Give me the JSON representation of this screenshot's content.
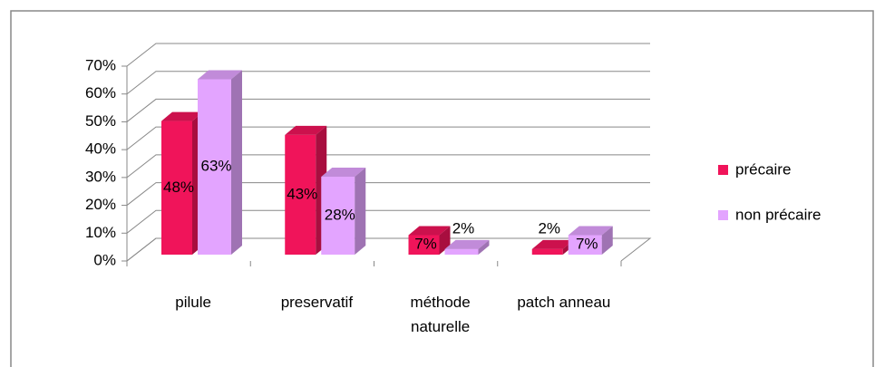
{
  "chart_data": {
    "type": "bar3d",
    "categories": [
      "pilule",
      "preservatif",
      "méthode naturelle",
      "patch anneau"
    ],
    "series": [
      {
        "name": "précaire",
        "color": "#f0145a",
        "values": [
          48,
          43,
          7,
          2
        ],
        "value_labels": [
          "48%",
          "43%",
          "7%",
          "2%"
        ]
      },
      {
        "name": "non précaire",
        "color": "#e3a4ff",
        "values": [
          63,
          28,
          2,
          7
        ],
        "value_labels": [
          "63%",
          "28%",
          "2%",
          "7%"
        ]
      }
    ],
    "ylim": [
      0,
      70
    ],
    "yticks": [
      {
        "value": 0,
        "label": "0%"
      },
      {
        "value": 10,
        "label": "10%"
      },
      {
        "value": 20,
        "label": "20%"
      },
      {
        "value": 30,
        "label": "30%"
      },
      {
        "value": 40,
        "label": "40%"
      },
      {
        "value": 50,
        "label": "50%"
      },
      {
        "value": 60,
        "label": "60%"
      },
      {
        "value": 70,
        "label": "70%"
      }
    ],
    "grid": true,
    "legend": "right"
  }
}
